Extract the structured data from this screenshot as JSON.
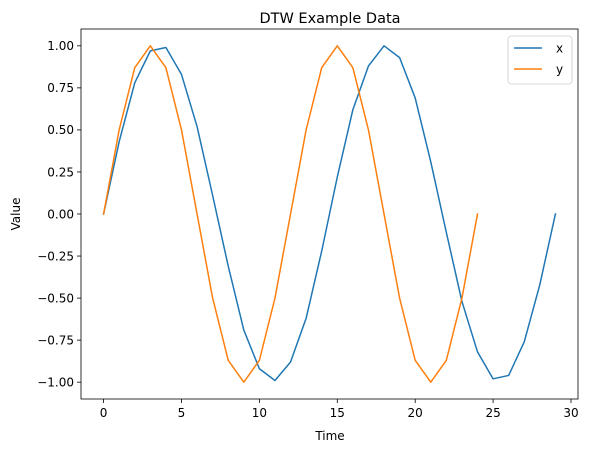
{
  "chart_data": {
    "type": "line",
    "title": "DTW Example Data",
    "xlabel": "Time",
    "ylabel": "Value",
    "xlim": [
      -1.45,
      30.45
    ],
    "ylim": [
      -1.1,
      1.1
    ],
    "xticks": [
      0,
      5,
      10,
      15,
      20,
      25,
      30
    ],
    "xtick_labels": [
      "0",
      "5",
      "10",
      "15",
      "20",
      "25",
      "30"
    ],
    "yticks": [
      -1.0,
      -0.75,
      -0.5,
      -0.25,
      0.0,
      0.25,
      0.5,
      0.75,
      1.0
    ],
    "ytick_labels": [
      "−1.00",
      "−0.75",
      "−0.50",
      "−0.25",
      "0.00",
      "0.25",
      "0.50",
      "0.75",
      "1.00"
    ],
    "grid": false,
    "legend_position": "top-right",
    "series": [
      {
        "name": "x",
        "color": "#1f77b4",
        "x": [
          0,
          1,
          2,
          3,
          4,
          5,
          6,
          7,
          8,
          9,
          10,
          11,
          12,
          13,
          14,
          15,
          16,
          17,
          18,
          19,
          20,
          21,
          22,
          23,
          24,
          25,
          26,
          27,
          28,
          29
        ],
        "y": [
          0.0,
          0.43,
          0.78,
          0.97,
          0.99,
          0.83,
          0.52,
          0.11,
          -0.31,
          -0.69,
          -0.92,
          -0.99,
          -0.88,
          -0.62,
          -0.22,
          0.22,
          0.62,
          0.88,
          1.0,
          0.93,
          0.69,
          0.31,
          -0.11,
          -0.52,
          -0.82,
          -0.98,
          -0.96,
          -0.76,
          -0.42,
          0.0
        ]
      },
      {
        "name": "y",
        "color": "#ff7f0e",
        "x": [
          0,
          1,
          2,
          3,
          4,
          5,
          6,
          7,
          8,
          9,
          10,
          11,
          12,
          13,
          14,
          15,
          16,
          17,
          18,
          19,
          20,
          21,
          22,
          23,
          24
        ],
        "y": [
          0.0,
          0.5,
          0.87,
          1.0,
          0.87,
          0.5,
          0.0,
          -0.5,
          -0.87,
          -1.0,
          -0.87,
          -0.5,
          0.0,
          0.5,
          0.87,
          1.0,
          0.87,
          0.5,
          0.0,
          -0.5,
          -0.87,
          -1.0,
          -0.87,
          -0.5,
          0.0
        ]
      }
    ]
  }
}
